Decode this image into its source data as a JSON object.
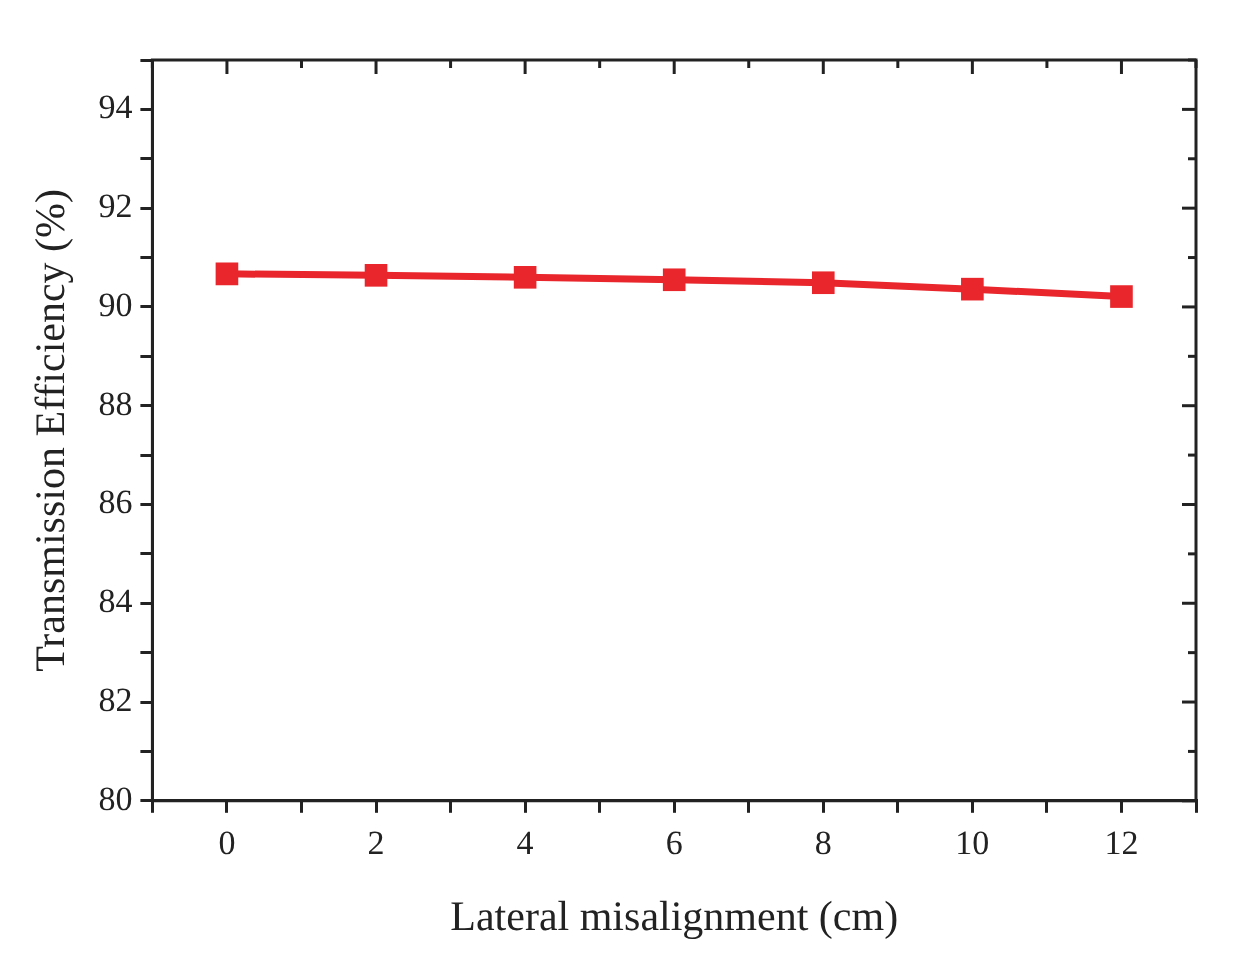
{
  "chart_data": {
    "type": "line",
    "xlabel": "Lateral misalignment (cm)",
    "ylabel": "Transmission Efficiency (%)",
    "x": [
      0,
      2,
      4,
      6,
      8,
      10,
      12
    ],
    "series": [
      {
        "color": "#e8262b",
        "values": [
          90.67,
          90.64,
          90.6,
          90.55,
          90.49,
          90.36,
          90.21
        ]
      }
    ],
    "xlim": [
      -1,
      13
    ],
    "xticks": [
      {
        "value": -1,
        "label": null
      },
      0,
      {
        "value": 1,
        "label": null
      },
      2,
      {
        "value": 3,
        "label": null
      },
      4,
      {
        "value": 5,
        "label": null
      },
      6,
      {
        "value": 7,
        "label": null
      },
      8,
      {
        "value": 9,
        "label": null
      },
      10,
      {
        "value": 11,
        "label": null
      },
      12,
      {
        "value": 13,
        "label": null
      }
    ],
    "ylim": [
      80,
      95
    ],
    "yticks": [
      80,
      {
        "value": 81,
        "label": null
      },
      82,
      {
        "value": 83,
        "label": null
      },
      84,
      {
        "value": 85,
        "label": null
      },
      86,
      {
        "value": 87,
        "label": null
      },
      88,
      {
        "value": 89,
        "label": null
      },
      90,
      {
        "value": 91,
        "label": null
      },
      92,
      {
        "value": 93,
        "label": null
      },
      94,
      {
        "value": 95,
        "label": null
      }
    ],
    "grid": false,
    "marker": "square",
    "line_style": "solid"
  }
}
